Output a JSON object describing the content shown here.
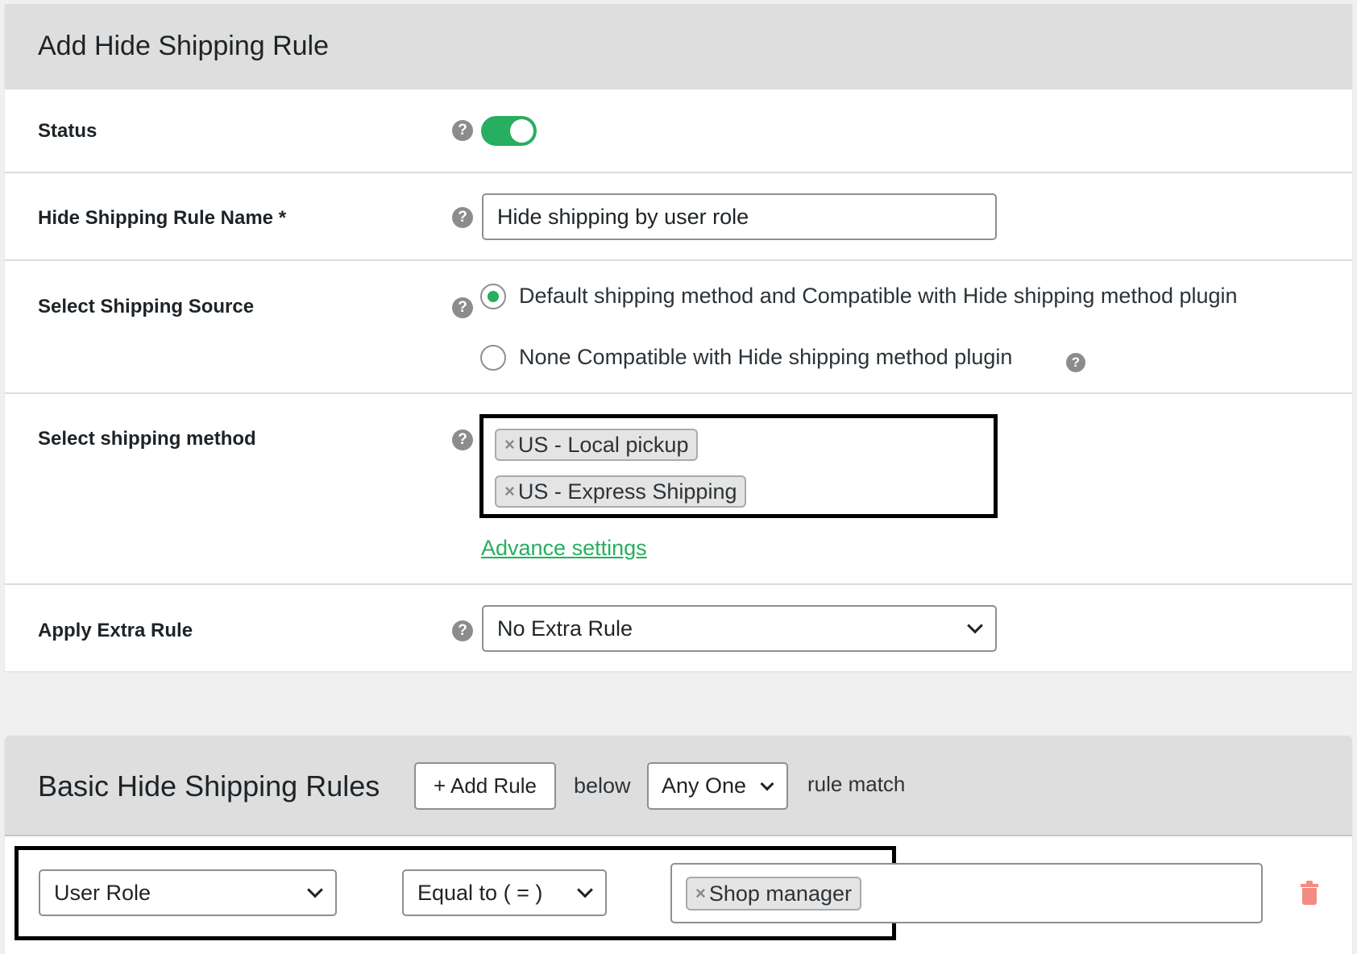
{
  "main_panel": {
    "title": "Add Hide Shipping Rule",
    "status": {
      "label": "Status",
      "enabled": true,
      "accent": "#27ae60"
    },
    "rule_name": {
      "label": "Hide Shipping Rule Name *",
      "value": "Hide shipping by user role"
    },
    "shipping_source": {
      "label": "Select Shipping Source",
      "options": [
        {
          "label": "Default shipping method and Compatible with Hide shipping method plugin",
          "selected": true
        },
        {
          "label": "None Compatible with Hide shipping method plugin",
          "selected": false
        }
      ]
    },
    "shipping_method": {
      "label": "Select shipping method",
      "tags": [
        "US - Local pickup",
        "US - Express Shipping"
      ],
      "advance_link": "Advance settings"
    },
    "extra_rule": {
      "label": "Apply Extra Rule",
      "value": "No Extra Rule"
    }
  },
  "rules_panel": {
    "title": "Basic Hide Shipping Rules",
    "add_rule": "+ Add Rule",
    "below": "below",
    "match_select": "Any One",
    "rule_match": "rule match",
    "rule": {
      "field": "User Role",
      "operator": "Equal to ( = )",
      "values": [
        "Shop manager"
      ]
    }
  },
  "icons": {
    "help": "question-circle-icon",
    "remove": "x-icon",
    "delete": "trash-icon",
    "dropdown": "chevron-down-icon"
  },
  "colors": {
    "link": "#27ae60",
    "delete": "#f28b82",
    "header_bg": "#dedede"
  }
}
